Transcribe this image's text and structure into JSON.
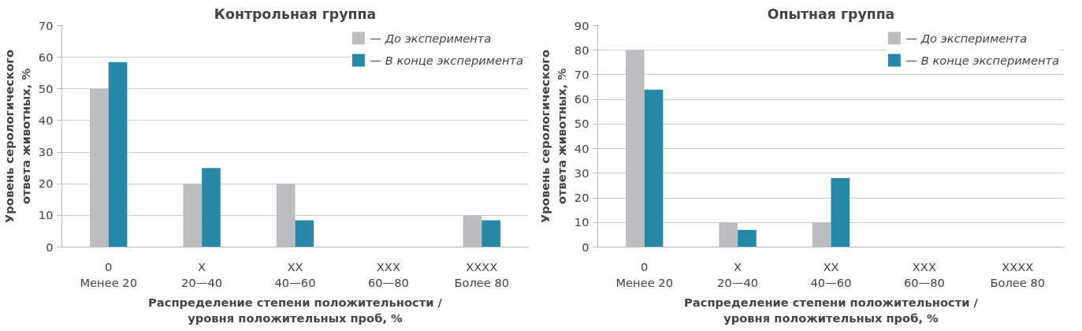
{
  "chart_data": [
    {
      "type": "bar",
      "title": "Контрольная группа",
      "xlabel": "Распределение степени положительности /\nуровня положительных проб, %",
      "ylabel": "Уровень серологического\nответа животных, %",
      "categories": [
        "0\nМенее 20",
        "X\n20—40",
        "XX\n40—60",
        "XXX\n60—80",
        "XXXX\nБолее 80"
      ],
      "series": [
        {
          "name": "— До эксперимента",
          "color": "#bcbdc0",
          "values": [
            50,
            20,
            20,
            0,
            10
          ]
        },
        {
          "name": "— В конце эксперимента",
          "color": "#2787a7",
          "values": [
            58.5,
            25,
            8.5,
            0,
            8.5
          ]
        }
      ],
      "ylim": [
        0,
        70
      ],
      "yticks": [
        0,
        10,
        20,
        30,
        40,
        50,
        60,
        70
      ],
      "grid": "y",
      "legend": "top right"
    },
    {
      "type": "bar",
      "title": "Опытная группа",
      "xlabel": "Распределение степени положительности /\nуровня положительных проб, %",
      "ylabel": "Уровень серологического\nответа животных, %",
      "categories": [
        "0\nМенее 20",
        "X\n20—40",
        "XX\n40—60",
        "XXX\n60—80",
        "XXXX\nБолее 80"
      ],
      "series": [
        {
          "name": "— До эксперимента",
          "color": "#bcbdc0",
          "values": [
            80,
            10,
            10,
            0,
            0
          ]
        },
        {
          "name": "— В конце эксперимента",
          "color": "#2787a7",
          "values": [
            64,
            7,
            28,
            0,
            0
          ]
        }
      ],
      "ylim": [
        0,
        90
      ],
      "yticks": [
        0,
        10,
        20,
        30,
        40,
        50,
        60,
        70,
        80,
        90
      ],
      "grid": "y",
      "legend": "top right"
    }
  ]
}
